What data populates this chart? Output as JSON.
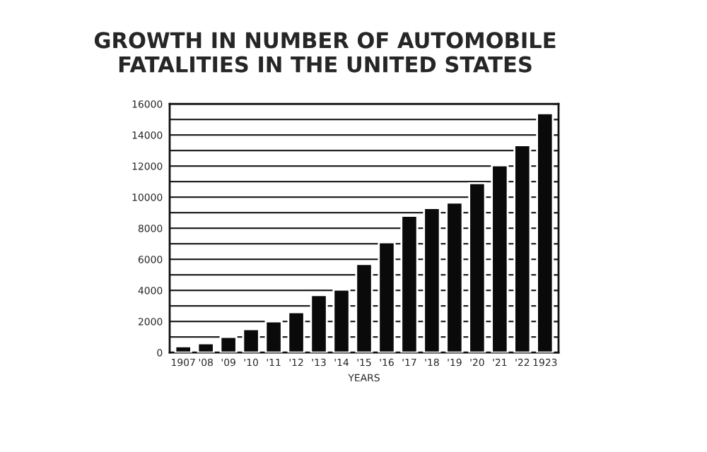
{
  "chart_data": {
    "type": "bar",
    "title": "GROWTH IN NUMBER OF AUTOMOBILE\nFATALITIES IN THE UNITED STATES",
    "xlabel": "YEARS",
    "categories": [
      "1907",
      "'08",
      "'09",
      "'10",
      "'11",
      "'12",
      "'13",
      "'14",
      "'15",
      "'16",
      "'17",
      "'18",
      "'19",
      "'20",
      "'21",
      "'22",
      "1923"
    ],
    "values": [
      400,
      600,
      1000,
      1500,
      2000,
      2600,
      3700,
      4050,
      5700,
      7100,
      8800,
      9300,
      9650,
      10900,
      12050,
      13350,
      15400
    ],
    "color": "#0a0a0a",
    "ylim": [
      0,
      16000
    ],
    "yticks": [
      0,
      {
        "value": 1000,
        "label": null
      },
      2000,
      {
        "value": 3000,
        "label": null
      },
      4000,
      {
        "value": 5000,
        "label": null
      },
      6000,
      {
        "value": 7000,
        "label": null
      },
      8000,
      {
        "value": 9000,
        "label": null
      },
      10000,
      {
        "value": 11000,
        "label": null
      },
      12000,
      {
        "value": 13000,
        "label": null
      },
      14000,
      {
        "value": 15000,
        "label": null
      },
      16000
    ],
    "grid": "y",
    "legend": false
  }
}
